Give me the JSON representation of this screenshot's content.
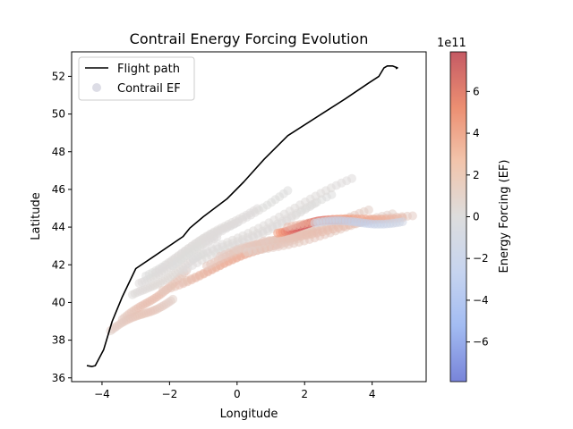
{
  "chart_data": {
    "type": "scatter",
    "title": "Contrail Energy Forcing Evolution",
    "xlabel": "Longitude",
    "ylabel": "Latitude",
    "xlim": [
      -4.9,
      5.6
    ],
    "ylim": [
      35.8,
      53.3
    ],
    "xticks": [
      -4,
      -2,
      0,
      2,
      4
    ],
    "yticks": [
      36,
      38,
      40,
      42,
      44,
      46,
      48,
      50,
      52
    ],
    "grid": false,
    "legend": {
      "placement": "top-left",
      "entries": [
        {
          "label": "Flight path",
          "kind": "line",
          "color": "#000000"
        },
        {
          "label": "Contrail EF",
          "kind": "marker",
          "color": "#dddde6"
        }
      ]
    },
    "colorbar": {
      "label": "Energy Forcing (EF)",
      "scale_text": "1e11",
      "colormap": "coolwarm",
      "range": [
        -7.9,
        7.9
      ],
      "ticks": [
        -6,
        -4,
        -2,
        0,
        2,
        4,
        6
      ],
      "tick_labels": [
        "−6",
        "−4",
        "−2",
        "0",
        "2",
        "4",
        "6"
      ]
    },
    "series": [
      {
        "name": "Flight path",
        "kind": "line",
        "color": "#000000",
        "x": [
          -4.45,
          -4.3,
          -4.2,
          -3.95,
          -3.7,
          -3.4,
          -3.0,
          -2.5,
          -1.6,
          -1.4,
          -1.0,
          -0.3,
          0.2,
          0.8,
          1.5,
          2.5,
          3.2,
          3.9,
          4.2,
          4.35,
          4.45,
          4.6,
          4.75,
          4.7
        ],
        "y": [
          36.65,
          36.6,
          36.65,
          37.5,
          39.0,
          40.3,
          41.8,
          42.4,
          43.5,
          43.95,
          44.55,
          45.5,
          46.4,
          47.6,
          48.85,
          50.0,
          50.8,
          51.65,
          52.0,
          52.45,
          52.55,
          52.55,
          52.45,
          52.4
        ]
      }
    ],
    "contrail_ef": {
      "name": "Contrail EF",
      "unit_scale": "1e11",
      "trails": [
        {
          "x0": -3.75,
          "y0": 38.5,
          "x1": -1.9,
          "y1": 40.2,
          "ef": 1.5
        },
        {
          "x0": -3.4,
          "y0": 39.0,
          "x1": -1.5,
          "y1": 41.6,
          "ef": 1.9
        },
        {
          "x0": -3.1,
          "y0": 40.3,
          "x1": -1.0,
          "y1": 42.5,
          "ef": 0.3
        },
        {
          "x0": -2.9,
          "y0": 41.0,
          "x1": -0.6,
          "y1": 43.4,
          "ef": 0.2
        },
        {
          "x0": -2.7,
          "y0": 41.5,
          "x1": 0.0,
          "y1": 44.3,
          "ef": 0.1
        },
        {
          "x0": -2.4,
          "y0": 41.7,
          "x1": 0.6,
          "y1": 45.1,
          "ef": 0.2
        },
        {
          "x0": -1.9,
          "y0": 42.0,
          "x1": 1.5,
          "y1": 46.0,
          "ef": 0.1
        },
        {
          "x0": -1.6,
          "y0": 41.6,
          "x1": 2.3,
          "y1": 45.2,
          "ef": 0.2
        },
        {
          "x0": -1.3,
          "y0": 42.2,
          "x1": 2.8,
          "y1": 45.6,
          "ef": 0.1
        },
        {
          "x0": -0.9,
          "y0": 42.7,
          "x1": 3.4,
          "y1": 46.5,
          "ef": 0.2
        },
        {
          "x0": -2.2,
          "y0": 40.7,
          "x1": 1.2,
          "y1": 43.1,
          "ef": 2.3
        },
        {
          "x0": -1.6,
          "y0": 41.2,
          "x1": 1.8,
          "y1": 43.5,
          "ef": 2.7
        },
        {
          "x0": -0.9,
          "y0": 42.0,
          "x1": 2.3,
          "y1": 44.1,
          "ef": 2.2
        },
        {
          "x0": -0.5,
          "y0": 42.4,
          "x1": 3.2,
          "y1": 44.3,
          "ef": 1.8
        },
        {
          "x0": 0.0,
          "y0": 42.7,
          "x1": 3.9,
          "y1": 44.8,
          "ef": 1.6
        },
        {
          "x0": 0.3,
          "y0": 42.6,
          "x1": 4.6,
          "y1": 44.6,
          "ef": 1.3
        },
        {
          "x0": 0.8,
          "y0": 43.3,
          "x1": 5.2,
          "y1": 44.6,
          "ef": 1.9
        },
        {
          "x0": 1.2,
          "y0": 43.8,
          "x1": 3.3,
          "y1": 44.5,
          "ef": 6.5
        },
        {
          "x0": 1.5,
          "y0": 44.1,
          "x1": 4.9,
          "y1": 44.6,
          "ef": 3.5
        },
        {
          "x0": 2.3,
          "y0": 44.2,
          "x1": 4.9,
          "y1": 44.3,
          "ef": -1.2
        }
      ]
    }
  }
}
